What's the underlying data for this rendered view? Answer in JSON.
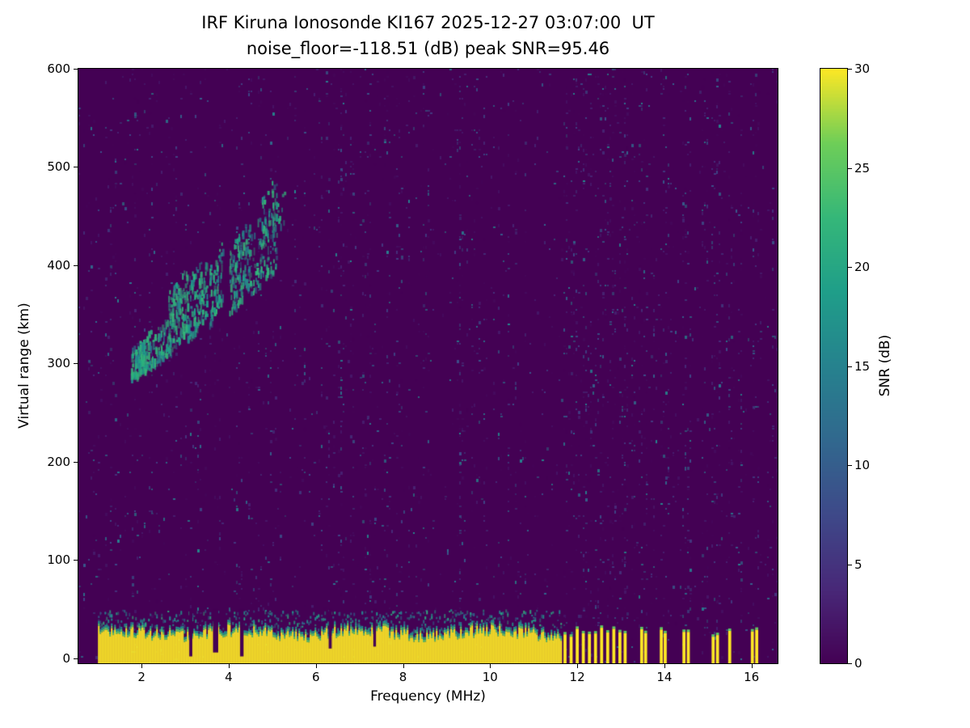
{
  "colors": {
    "background": "#ffffff",
    "text": "#000000",
    "heatmap_low": "#440154",
    "heatmap_high": "#fde725"
  },
  "chart_data": {
    "type": "heatmap",
    "title": "IRF Kiruna Ionosonde KI167 2025-12-27 03:07:00  UT",
    "subtitle": "noise_floor=-118.51 (dB) peak SNR=95.46",
    "xlabel": "Frequency (MHz)",
    "ylabel": "Virtual range (km)",
    "colorbar_label": "SNR (dB)",
    "noise_floor_db": -118.51,
    "peak_snr_db": 95.46,
    "xlim": [
      0.55,
      16.6
    ],
    "ylim": [
      -5,
      600
    ],
    "clim": [
      0,
      30
    ],
    "xticks": [
      2,
      4,
      6,
      8,
      10,
      12,
      14,
      16
    ],
    "yticks": [
      0,
      100,
      200,
      300,
      400,
      500,
      600
    ],
    "colorbar_ticks": [
      0,
      5,
      10,
      15,
      20,
      25,
      30
    ],
    "colormap": "viridis",
    "colormap_stops": [
      [
        0.0,
        "#440154"
      ],
      [
        0.125,
        "#482878"
      ],
      [
        0.25,
        "#3e4989"
      ],
      [
        0.375,
        "#31688e"
      ],
      [
        0.5,
        "#26828e"
      ],
      [
        0.625,
        "#1f9e89"
      ],
      [
        0.75,
        "#35b779"
      ],
      [
        0.875,
        "#6ece58"
      ],
      [
        1.0,
        "#fde725"
      ]
    ],
    "ground_band": {
      "f_start": 1.0,
      "f_end": 11.62,
      "r_bottom": -5,
      "r_top_mean": 27,
      "r_top_jitter": 13,
      "speckle_top_km": 48,
      "cap_colors": [
        "#5ec962",
        "#21918c"
      ]
    },
    "band_notches": [
      {
        "f": 3.13,
        "width": 0.07,
        "floor": 2
      },
      {
        "f": 3.7,
        "width": 0.12,
        "floor": 6
      },
      {
        "f": 4.3,
        "width": 0.08,
        "floor": 2
      },
      {
        "f": 6.33,
        "width": 0.07,
        "floor": 10
      },
      {
        "f": 7.35,
        "width": 0.06,
        "floor": 12
      }
    ],
    "interference_stripes": [
      11.72,
      11.86,
      12.0,
      12.14,
      12.28,
      12.42,
      12.56,
      12.7,
      12.84,
      12.98,
      13.1,
      13.48,
      13.57,
      13.93,
      14.02,
      14.45,
      14.55,
      15.12,
      15.22,
      15.5,
      16.02,
      16.12
    ],
    "stripe_width": 0.07,
    "echo_trace": {
      "colors": [
        "#1fa187",
        "#2db27d",
        "#26828e",
        "#35b779"
      ],
      "segments": [
        {
          "f0": 1.75,
          "f1": 2.15,
          "r0": 285,
          "r1": 330,
          "n": 150
        },
        {
          "f0": 2.15,
          "f1": 2.6,
          "r0": 295,
          "r1": 350,
          "n": 80
        },
        {
          "f0": 2.6,
          "f1": 3.05,
          "r0": 310,
          "r1": 400,
          "n": 150
        },
        {
          "f0": 3.05,
          "f1": 3.5,
          "r0": 325,
          "r1": 415,
          "n": 110
        },
        {
          "f0": 3.55,
          "f1": 3.85,
          "r0": 340,
          "r1": 425,
          "n": 70
        },
        {
          "f0": 4.0,
          "f1": 4.5,
          "r0": 350,
          "r1": 450,
          "n": 130
        },
        {
          "f0": 4.5,
          "f1": 5.1,
          "r0": 370,
          "r1": 470,
          "n": 100
        },
        {
          "f0": 4.75,
          "f1": 5.3,
          "r0": 420,
          "r1": 500,
          "n": 40
        }
      ]
    },
    "noise": {
      "seed": 42,
      "base_density": 0.05,
      "column_boost_freqs": [
        2.2,
        3.0,
        4.45,
        6.4,
        7.6,
        9.3,
        10.4
      ]
    }
  }
}
